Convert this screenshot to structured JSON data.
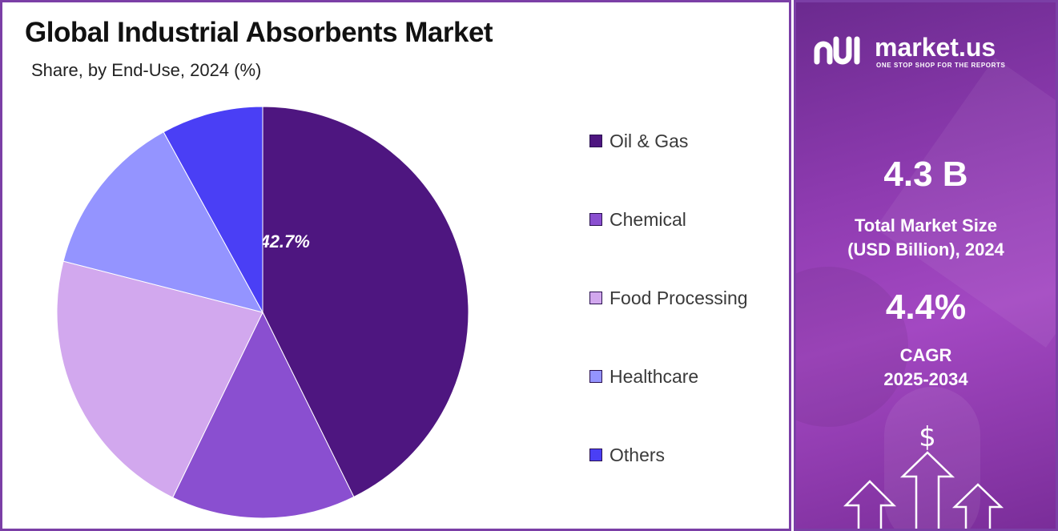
{
  "chart_data": {
    "type": "pie",
    "title": "Global Industrial Absorbents Market",
    "subtitle": "Share, by End-Use, 2024 (%)",
    "slices": [
      {
        "name": "Oil & Gas",
        "value": 42.7,
        "label": "42.7%",
        "color": "#4e1680"
      },
      {
        "name": "Chemical",
        "value": 14.5,
        "label": "",
        "color": "#8a4fd0"
      },
      {
        "name": "Food Processing",
        "value": 21.8,
        "label": "",
        "color": "#d2a8ee"
      },
      {
        "name": "Healthcare",
        "value": 13.0,
        "label": "",
        "color": "#9494ff"
      },
      {
        "name": "Others",
        "value": 8.0,
        "label": "",
        "color": "#4a3ff5"
      }
    ],
    "legend_position": "right"
  },
  "sidebar": {
    "brand": "market.us",
    "tagline": "ONE STOP SHOP FOR THE REPORTS",
    "market_size_value": "4.3 B",
    "market_size_label_line1": "Total Market Size",
    "market_size_label_line2": "(USD Billion), 2024",
    "cagr_value": "4.4%",
    "cagr_label_line1": "CAGR",
    "cagr_label_line2": "2025-2034",
    "dollar_symbol": "$"
  }
}
